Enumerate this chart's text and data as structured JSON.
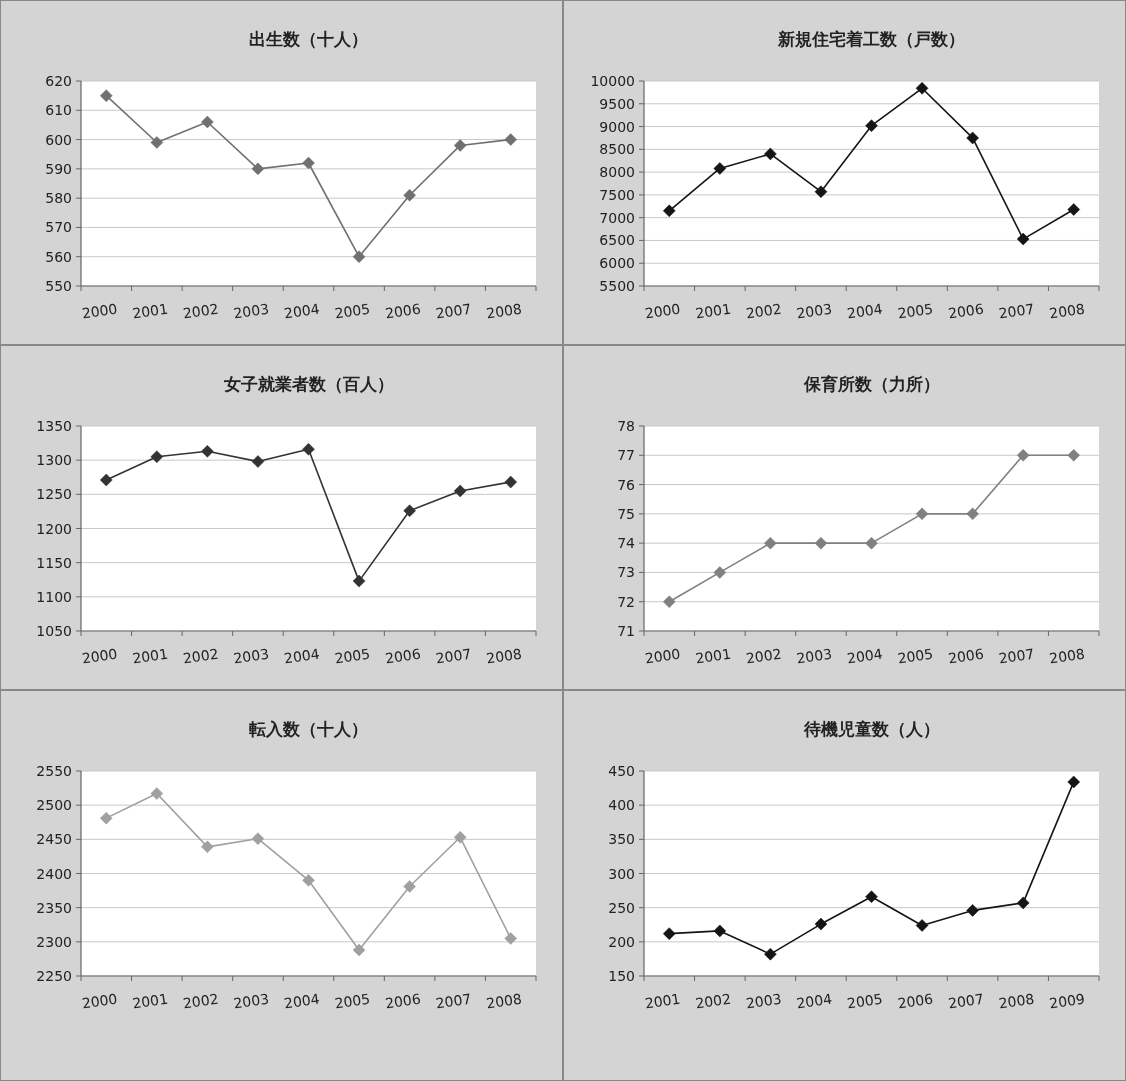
{
  "chart_data": [
    {
      "type": "line",
      "title": "出生数（十人）",
      "categories": [
        "2000",
        "2001",
        "2002",
        "2003",
        "2004",
        "2005",
        "2006",
        "2007",
        "2008"
      ],
      "series": [
        {
          "color": "#707070",
          "values": [
            615,
            599,
            606,
            590,
            592,
            560,
            581,
            598,
            600
          ]
        }
      ],
      "ylim": [
        550,
        620
      ],
      "yticks": [
        550,
        560,
        570,
        580,
        590,
        600,
        610,
        620
      ],
      "grid": "y",
      "marker": "diamond"
    },
    {
      "type": "line",
      "title": "新規住宅着工数（戸数）",
      "categories": [
        "2000",
        "2001",
        "2002",
        "2003",
        "2004",
        "2005",
        "2006",
        "2007",
        "2008"
      ],
      "series": [
        {
          "color": "#151515",
          "values": [
            7150,
            8080,
            8400,
            7570,
            9020,
            9840,
            8750,
            6530,
            7180
          ]
        }
      ],
      "ylim": [
        5500,
        10000
      ],
      "yticks": [
        5500,
        6000,
        6500,
        7000,
        7500,
        8000,
        8500,
        9000,
        9500,
        10000
      ],
      "grid": "y",
      "marker": "diamond"
    },
    {
      "type": "line",
      "title": "女子就業者数（百人）",
      "categories": [
        "2000",
        "2001",
        "2002",
        "2003",
        "2004",
        "2005",
        "2006",
        "2007",
        "2008"
      ],
      "series": [
        {
          "color": "#333333",
          "values": [
            1271,
            1305,
            1313,
            1298,
            1316,
            1123,
            1226,
            1255,
            1268
          ]
        }
      ],
      "ylim": [
        1050,
        1350
      ],
      "yticks": [
        1050,
        1100,
        1150,
        1200,
        1250,
        1300,
        1350
      ],
      "grid": "y",
      "marker": "diamond"
    },
    {
      "type": "line",
      "title": "保育所数（力所）",
      "categories": [
        "2000",
        "2001",
        "2002",
        "2003",
        "2004",
        "2005",
        "2006",
        "2007",
        "2008"
      ],
      "series": [
        {
          "color": "#808080",
          "values": [
            72,
            73,
            74,
            74,
            74,
            75,
            75,
            77,
            77
          ]
        }
      ],
      "ylim": [
        71,
        78
      ],
      "yticks": [
        71,
        72,
        73,
        74,
        75,
        76,
        77,
        78
      ],
      "grid": "y",
      "marker": "diamond"
    },
    {
      "type": "line",
      "title": "転入数（十人）",
      "categories": [
        "2000",
        "2001",
        "2002",
        "2003",
        "2004",
        "2005",
        "2006",
        "2007",
        "2008"
      ],
      "series": [
        {
          "color": "#a0a0a0",
          "values": [
            2481,
            2517,
            2439,
            2451,
            2390,
            2288,
            2381,
            2453,
            2305
          ]
        }
      ],
      "ylim": [
        2250,
        2550
      ],
      "yticks": [
        2250,
        2300,
        2350,
        2400,
        2450,
        2500,
        2550
      ],
      "grid": "y",
      "marker": "diamond"
    },
    {
      "type": "line",
      "title": "待機児童数（人）",
      "categories": [
        "2001",
        "2002",
        "2003",
        "2004",
        "2005",
        "2006",
        "2007",
        "2008",
        "2009"
      ],
      "series": [
        {
          "color": "#151515",
          "values": [
            212,
            216,
            182,
            226,
            266,
            224,
            246,
            257,
            434
          ]
        }
      ],
      "ylim": [
        150,
        450
      ],
      "yticks": [
        150,
        200,
        250,
        300,
        350,
        400,
        450
      ],
      "grid": "y",
      "marker": "diamond"
    }
  ]
}
